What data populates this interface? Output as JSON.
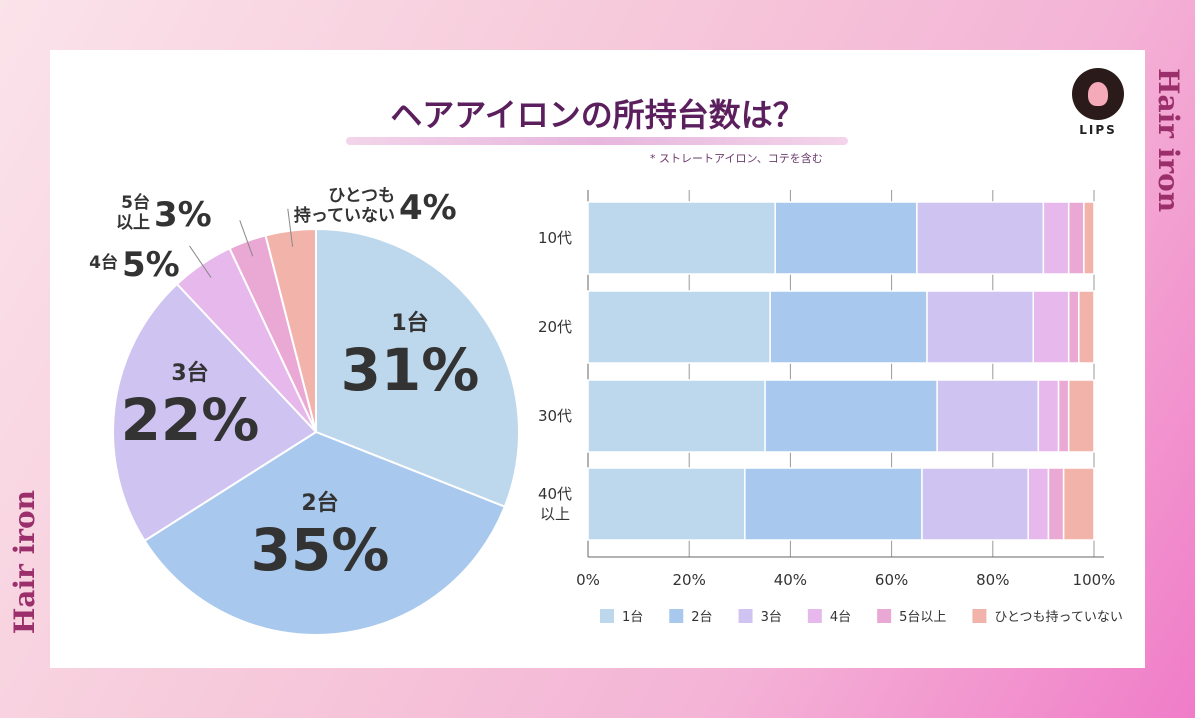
{
  "side_text": "Hair iron",
  "title": "ヘアアイロンの所持台数は？",
  "note": "* ストレートアイロン、コテを含む",
  "logo": "LIPS",
  "colors": [
    "#bdd8ec",
    "#a8c8ee",
    "#cfc3f1",
    "#e6b8ec",
    "#eaa9d4",
    "#f2b4aa"
  ],
  "chart_data": [
    {
      "type": "pie",
      "categories": [
        "1台",
        "2台",
        "3台",
        "4台",
        "5台以上",
        "ひとつも持っていない"
      ],
      "label_lines": [
        [
          "1台"
        ],
        [
          "2台"
        ],
        [
          "3台"
        ],
        [
          "4台"
        ],
        [
          "5台",
          "以上"
        ],
        [
          "ひとつも",
          "持っていない"
        ]
      ],
      "values": [
        31,
        35,
        22,
        5,
        3,
        4
      ],
      "value_labels": [
        "31%",
        "35%",
        "22%",
        "5%",
        "3%",
        "4%"
      ]
    },
    {
      "type": "bar",
      "stacked": true,
      "orientation": "horizontal",
      "categories": [
        "10代",
        "20代",
        "30代",
        "40代以上"
      ],
      "category_lines": [
        [
          "10代"
        ],
        [
          "20代"
        ],
        [
          "30代"
        ],
        [
          "40代",
          "以上"
        ]
      ],
      "series": [
        {
          "name": "1台",
          "values": [
            37,
            36,
            35,
            31
          ]
        },
        {
          "name": "2台",
          "values": [
            28,
            31,
            34,
            35
          ]
        },
        {
          "name": "3台",
          "values": [
            25,
            21,
            20,
            21
          ]
        },
        {
          "name": "4台",
          "values": [
            5,
            7,
            4,
            4
          ]
        },
        {
          "name": "5台以上",
          "values": [
            3,
            2,
            2,
            3
          ]
        },
        {
          "name": "ひとつも持っていない",
          "values": [
            2,
            3,
            5,
            6
          ]
        }
      ],
      "xlim": [
        0,
        100
      ],
      "xticks": [
        "0%",
        "20%",
        "40%",
        "60%",
        "80%",
        "100%"
      ],
      "grid": true,
      "legend": "bottom"
    }
  ]
}
